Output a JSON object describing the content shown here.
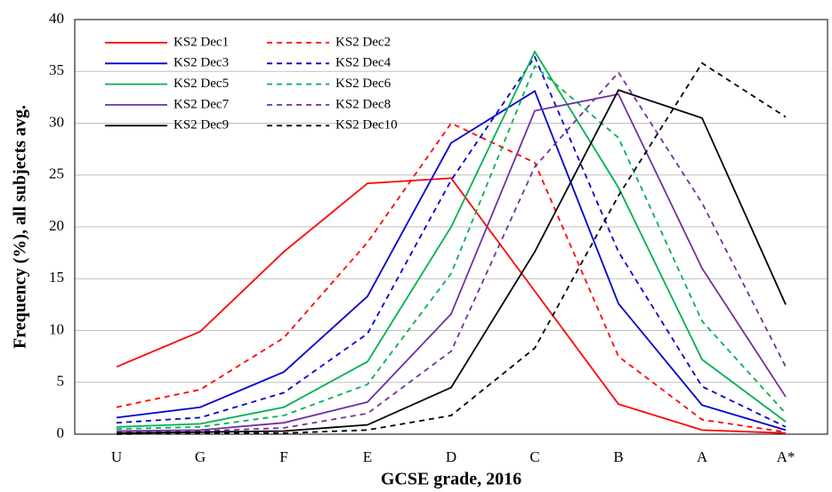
{
  "chart_data": {
    "type": "line",
    "categories": [
      "U",
      "G",
      "F",
      "E",
      "D",
      "C",
      "B",
      "A",
      "A*"
    ],
    "x_label": "GCSE  grade, 2016",
    "y_label": "Frequency  (%), all subjects  avg.",
    "ylim": [
      0,
      40
    ],
    "yticks": [
      0,
      5,
      10,
      15,
      20,
      25,
      30,
      35,
      40
    ],
    "grid": true,
    "legend": "upper left",
    "series": [
      {
        "name": "KS2 Dec1",
        "color": "#ff0000",
        "dashed": false,
        "values": [
          6.5,
          9.9,
          17.6,
          24.2,
          24.7,
          13.8,
          2.9,
          0.4,
          0.1
        ]
      },
      {
        "name": "KS2 Dec2",
        "color": "#ff0000",
        "dashed": true,
        "values": [
          2.6,
          4.3,
          9.3,
          18.5,
          30.0,
          26.2,
          7.5,
          1.4,
          0.2
        ]
      },
      {
        "name": "KS2 Dec3",
        "color": "#0000cc",
        "dashed": false,
        "values": [
          1.6,
          2.6,
          6.0,
          13.3,
          28.1,
          33.1,
          12.6,
          2.8,
          0.4
        ]
      },
      {
        "name": "KS2 Dec4",
        "color": "#0000cc",
        "dashed": true,
        "values": [
          1.1,
          1.6,
          4.0,
          9.7,
          24.5,
          36.4,
          17.6,
          4.6,
          0.7
        ]
      },
      {
        "name": "KS2 Dec5",
        "color": "#00b050",
        "dashed": false,
        "values": [
          0.7,
          1.0,
          2.6,
          7.0,
          20.0,
          36.9,
          23.8,
          7.2,
          1.2
        ]
      },
      {
        "name": "KS2 Dec6",
        "color": "#00b050",
        "dashed": true,
        "values": [
          0.5,
          0.7,
          1.8,
          4.8,
          15.5,
          35.5,
          28.6,
          10.9,
          2.0
        ]
      },
      {
        "name": "KS2 Dec7",
        "color": "#7030a0",
        "dashed": false,
        "values": [
          0.3,
          0.4,
          1.1,
          3.1,
          11.6,
          31.2,
          32.8,
          16.0,
          3.6
        ]
      },
      {
        "name": "KS2 Dec8",
        "color": "#7030a0",
        "dashed": true,
        "values": [
          0.2,
          0.3,
          0.6,
          2.0,
          8.0,
          25.8,
          34.9,
          22.3,
          6.5
        ]
      },
      {
        "name": "KS2 Dec9",
        "color": "#000000",
        "dashed": false,
        "values": [
          0.1,
          0.2,
          0.3,
          0.9,
          4.5,
          17.6,
          33.2,
          30.5,
          12.5
        ]
      },
      {
        "name": "KS2 Dec10",
        "color": "#000000",
        "dashed": true,
        "values": [
          0.0,
          0.1,
          0.1,
          0.4,
          1.8,
          8.3,
          23.0,
          35.8,
          30.6
        ]
      }
    ]
  }
}
